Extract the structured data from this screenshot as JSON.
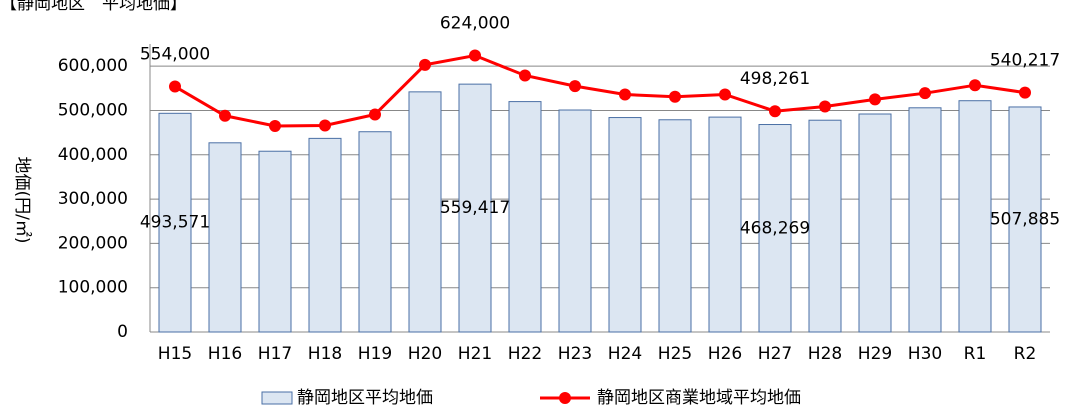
{
  "chart_data": {
    "type": "bar_line",
    "title": "【静岡地区　平均地価】",
    "y_label": "地価(円/㎡)",
    "categories": [
      "H15",
      "H16",
      "H17",
      "H18",
      "H19",
      "H20",
      "H21",
      "H22",
      "H23",
      "H24",
      "H25",
      "H26",
      "H27",
      "H28",
      "H29",
      "H30",
      "R1",
      "R2"
    ],
    "series": [
      {
        "name": "静岡地区平均地価",
        "type": "bar",
        "color": "#dce6f2",
        "stroke": "#4a6fa5",
        "values": [
          493571,
          427000,
          408000,
          437000,
          452000,
          542000,
          559417,
          520000,
          501000,
          484000,
          479000,
          485000,
          468269,
          478000,
          492000,
          506000,
          522000,
          507885
        ],
        "value_labels": [
          "493,571",
          null,
          null,
          null,
          null,
          null,
          "559,417",
          null,
          null,
          null,
          null,
          null,
          "468,269",
          null,
          null,
          null,
          null,
          "507,885"
        ]
      },
      {
        "name": "静岡地区商業地域平均地価",
        "type": "line",
        "color": "#ff0000",
        "values": [
          554000,
          488000,
          465000,
          466000,
          491000,
          603000,
          624000,
          579000,
          555000,
          536000,
          531000,
          536000,
          498261,
          509000,
          525000,
          539000,
          557000,
          540217
        ],
        "value_labels": [
          "554,000",
          null,
          null,
          null,
          null,
          null,
          "624,000",
          null,
          null,
          null,
          null,
          null,
          "498,261",
          null,
          null,
          null,
          null,
          "540,217"
        ]
      }
    ],
    "ylim": [
      0,
      650000
    ],
    "yticks": [
      0,
      {
        "value": 100000,
        "label": "100,000"
      },
      {
        "value": 200000,
        "label": "200,000"
      },
      {
        "value": 300000,
        "label": "300,000"
      },
      {
        "value": 400000,
        "label": "400,000"
      },
      {
        "value": 500000,
        "label": "500,000"
      },
      {
        "value": 600000,
        "label": "600,000"
      }
    ],
    "grid": true,
    "legend": "bottom"
  }
}
